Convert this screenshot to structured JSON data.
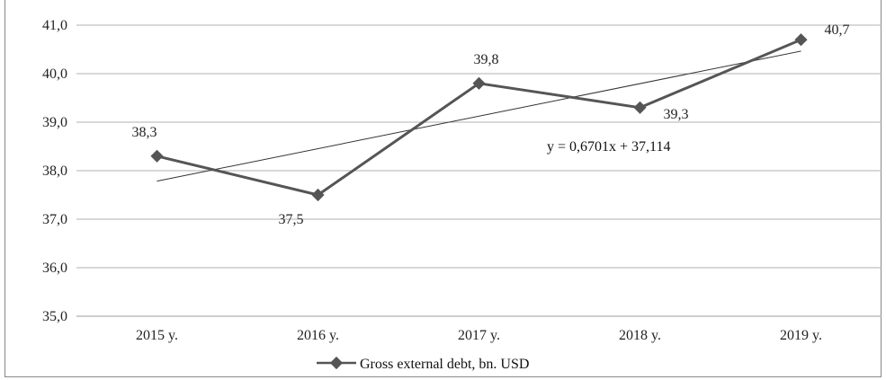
{
  "chart_data": {
    "type": "line",
    "categories": [
      "2015 y.",
      "2016 y.",
      "2017 y.",
      "2018 y.",
      "2019 y."
    ],
    "series": [
      {
        "name": "Gross external debt, bn. USD",
        "values": [
          38.3,
          37.5,
          39.8,
          39.3,
          40.7
        ],
        "labels": [
          "38,3",
          "37,5",
          "39,8",
          "39,3",
          "40,7"
        ]
      }
    ],
    "ylim": [
      35.0,
      41.0
    ],
    "yticks": [
      "35,0",
      "36,0",
      "37,0",
      "38,0",
      "39,0",
      "40,0",
      "41,0"
    ],
    "ytick_values": [
      35,
      36,
      37,
      38,
      39,
      40,
      41
    ],
    "trendline": {
      "slope": 0.6701,
      "intercept": 37.114,
      "equation": "y = 0,6701x + 37,114"
    },
    "grid": true,
    "legend_position": "bottom",
    "colors": {
      "series": "#555555",
      "trend": "#333333",
      "grid": "#b0b0b0"
    }
  }
}
